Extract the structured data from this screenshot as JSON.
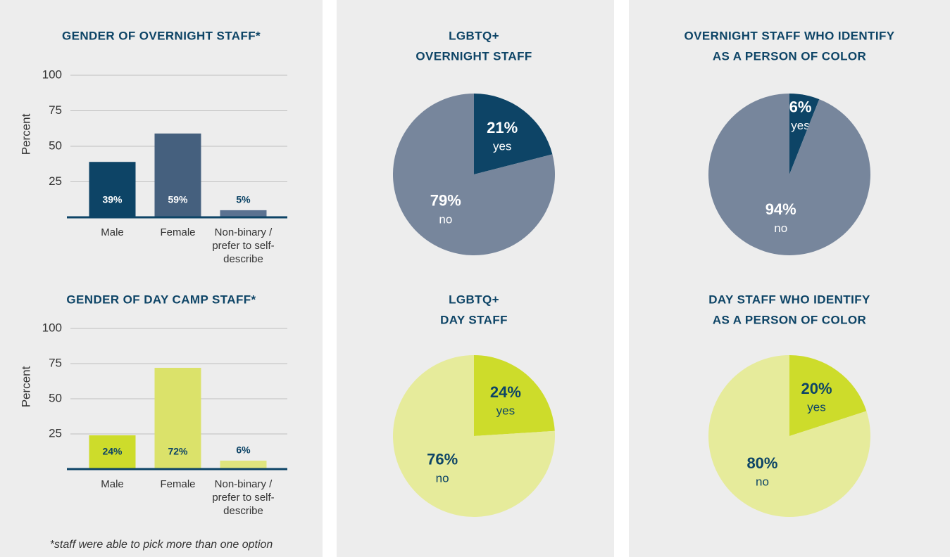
{
  "chart_data": [
    {
      "type": "bar",
      "title": [
        "GENDER OF OVERNIGHT STAFF*"
      ],
      "ylabel": "Percent",
      "categories": [
        "Male",
        "Female",
        "Non-binary / prefer to self-describe"
      ],
      "values": [
        39,
        59,
        5
      ],
      "value_labels": [
        "39%",
        "59%",
        "5%"
      ],
      "colors": [
        "#0d4466",
        "#45607e",
        "#5b7291"
      ],
      "label_color": "#ffffff",
      "ylim": [
        0,
        100
      ],
      "yticks": [
        25,
        50,
        75,
        100
      ],
      "grid": true
    },
    {
      "type": "pie",
      "title": [
        "LGBTQ+",
        "OVERNIGHT STAFF"
      ],
      "categories": [
        "yes",
        "no"
      ],
      "values": [
        21,
        79
      ],
      "value_labels": [
        "21%",
        "79%"
      ],
      "colors": [
        "#0d4466",
        "#77869c"
      ],
      "label_color": "#ffffff"
    },
    {
      "type": "pie",
      "title": [
        "OVERNIGHT STAFF WHO IDENTIFY",
        "AS A PERSON OF COLOR"
      ],
      "categories": [
        "yes",
        "no"
      ],
      "values": [
        6,
        94
      ],
      "value_labels": [
        "6%",
        "94%"
      ],
      "colors": [
        "#0d4466",
        "#77869c"
      ],
      "label_color": "#ffffff"
    },
    {
      "type": "bar",
      "title": [
        "GENDER OF DAY CAMP STAFF*"
      ],
      "ylabel": "Percent",
      "categories": [
        "Male",
        "Female",
        "Non-binary / prefer to self-describe"
      ],
      "values": [
        24,
        72,
        6
      ],
      "value_labels": [
        "24%",
        "72%",
        "6%"
      ],
      "colors": [
        "#cddc2b",
        "#dbe26a",
        "#dfe57e"
      ],
      "label_color": "#0d4466",
      "ylim": [
        0,
        100
      ],
      "yticks": [
        25,
        50,
        75,
        100
      ],
      "grid": true
    },
    {
      "type": "pie",
      "title": [
        "LGBTQ+",
        "DAY STAFF"
      ],
      "categories": [
        "yes",
        "no"
      ],
      "values": [
        24,
        76
      ],
      "value_labels": [
        "24%",
        "76%"
      ],
      "colors": [
        "#cddc2b",
        "#e6eb9b"
      ],
      "label_color": "#0d4466"
    },
    {
      "type": "pie",
      "title": [
        "DAY STAFF WHO IDENTIFY",
        "AS A PERSON OF COLOR"
      ],
      "categories": [
        "yes",
        "no"
      ],
      "values": [
        20,
        80
      ],
      "value_labels": [
        "20%",
        "80%"
      ],
      "colors": [
        "#cddc2b",
        "#e6eb9b"
      ],
      "label_color": "#0d4466"
    }
  ],
  "footnote": "*staff were able to pick more than one option"
}
